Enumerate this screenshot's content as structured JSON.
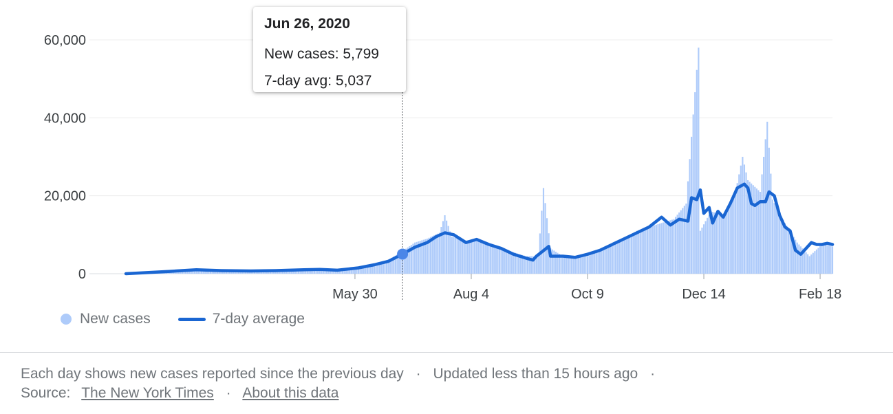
{
  "chart_data": {
    "type": "bar",
    "x_range": [
      "2020-01-21",
      "2021-02-25"
    ],
    "ylim": [
      0,
      60000
    ],
    "yticks": [
      0,
      20000,
      40000,
      60000
    ],
    "ytick_labels": [
      "0",
      "20,000",
      "40,000",
      "60,000"
    ],
    "xticks": [
      {
        "date": "2020-05-30",
        "label": "May 30"
      },
      {
        "date": "2020-08-04",
        "label": "Aug 4"
      },
      {
        "date": "2020-10-09",
        "label": "Oct 9"
      },
      {
        "date": "2020-12-14",
        "label": "Dec 14"
      },
      {
        "date": "2021-02-18",
        "label": "Feb 18"
      }
    ],
    "grid": true,
    "legend_position": "bottom-left",
    "series": [
      {
        "name": "New cases",
        "type": "bar",
        "color": "#aecbfa",
        "dates": [
          "2020-01-21",
          "2020-02-01",
          "2020-02-15",
          "2020-03-01",
          "2020-03-15",
          "2020-04-01",
          "2020-04-15",
          "2020-05-01",
          "2020-05-15",
          "2020-05-25",
          "2020-06-05",
          "2020-06-12",
          "2020-06-19",
          "2020-06-26",
          "2020-07-03",
          "2020-07-10",
          "2020-07-17",
          "2020-07-20",
          "2020-07-24",
          "2020-07-31",
          "2020-08-07",
          "2020-08-14",
          "2020-08-21",
          "2020-08-28",
          "2020-09-04",
          "2020-09-11",
          "2020-09-14",
          "2020-09-18",
          "2020-09-25",
          "2020-10-02",
          "2020-10-09",
          "2020-10-16",
          "2020-10-23",
          "2020-10-30",
          "2020-11-06",
          "2020-11-13",
          "2020-11-20",
          "2020-11-27",
          "2020-12-04",
          "2020-12-11",
          "2020-12-12",
          "2020-12-18",
          "2020-12-25",
          "2021-01-01",
          "2021-01-05",
          "2021-01-08",
          "2021-01-15",
          "2021-01-19",
          "2021-01-22",
          "2021-01-29",
          "2021-02-05",
          "2021-02-12",
          "2021-02-19",
          "2021-02-25"
        ],
        "values": [
          0,
          200,
          500,
          700,
          900,
          800,
          900,
          1100,
          1000,
          1300,
          1800,
          2700,
          3800,
          5799,
          8000,
          9000,
          10500,
          15000,
          9500,
          8500,
          8500,
          7500,
          6500,
          5500,
          4500,
          4500,
          22000,
          6500,
          4500,
          4500,
          4500,
          6000,
          7500,
          9000,
          11000,
          12000,
          13000,
          14000,
          18000,
          58000,
          11000,
          16000,
          15000,
          21000,
          30000,
          24000,
          21000,
          39000,
          19000,
          13000,
          8000,
          4500,
          7500,
          7000
        ]
      },
      {
        "name": "7-day average",
        "type": "line",
        "color": "#1a66d2",
        "dates": [
          "2020-01-21",
          "2020-02-15",
          "2020-03-01",
          "2020-03-15",
          "2020-04-01",
          "2020-04-15",
          "2020-05-01",
          "2020-05-10",
          "2020-05-20",
          "2020-06-01",
          "2020-06-10",
          "2020-06-18",
          "2020-06-26",
          "2020-07-03",
          "2020-07-10",
          "2020-07-15",
          "2020-07-20",
          "2020-07-25",
          "2020-08-01",
          "2020-08-07",
          "2020-08-14",
          "2020-08-21",
          "2020-08-28",
          "2020-09-04",
          "2020-09-08",
          "2020-09-10",
          "2020-09-17",
          "2020-09-18",
          "2020-09-25",
          "2020-10-02",
          "2020-10-09",
          "2020-10-16",
          "2020-10-23",
          "2020-10-30",
          "2020-11-06",
          "2020-11-13",
          "2020-11-20",
          "2020-11-25",
          "2020-11-30",
          "2020-12-05",
          "2020-12-07",
          "2020-12-10",
          "2020-12-12",
          "2020-12-14",
          "2020-12-17",
          "2020-12-19",
          "2020-12-22",
          "2020-12-25",
          "2020-12-29",
          "2021-01-02",
          "2021-01-06",
          "2021-01-08",
          "2021-01-10",
          "2021-01-12",
          "2021-01-15",
          "2021-01-18",
          "2021-01-20",
          "2021-01-23",
          "2021-01-26",
          "2021-01-29",
          "2021-02-01",
          "2021-02-04",
          "2021-02-07",
          "2021-02-10",
          "2021-02-13",
          "2021-02-16",
          "2021-02-19",
          "2021-02-22",
          "2021-02-25"
        ],
        "values": [
          0,
          600,
          1000,
          800,
          700,
          800,
          1000,
          1100,
          900,
          1500,
          2300,
          3200,
          5037,
          6800,
          8000,
          9500,
          10500,
          10000,
          8000,
          8800,
          7500,
          6500,
          5000,
          4000,
          3500,
          4500,
          7000,
          4500,
          4500,
          4200,
          5000,
          6000,
          7500,
          9000,
          10500,
          12000,
          14500,
          12500,
          14000,
          13500,
          19500,
          19000,
          21500,
          15500,
          17000,
          13000,
          16000,
          14500,
          18000,
          22000,
          23000,
          22000,
          18000,
          17500,
          18500,
          18500,
          21000,
          20000,
          15000,
          12000,
          11000,
          6000,
          5000,
          6500,
          8000,
          7500,
          7500,
          7800,
          7500
        ]
      }
    ]
  },
  "legend": {
    "new_cases": "New cases",
    "avg": "7-day average"
  },
  "tooltip": {
    "date": "Jun 26, 2020",
    "new_cases": "New cases: 5,799",
    "avg": "7-day avg: 5,037"
  },
  "footer": {
    "note": "Each day shows new cases reported since the previous day",
    "updated": "Updated less than 15 hours ago",
    "sep": "·",
    "source_label": "Source:",
    "source_link": "The New York Times",
    "about_link": "About this data"
  }
}
